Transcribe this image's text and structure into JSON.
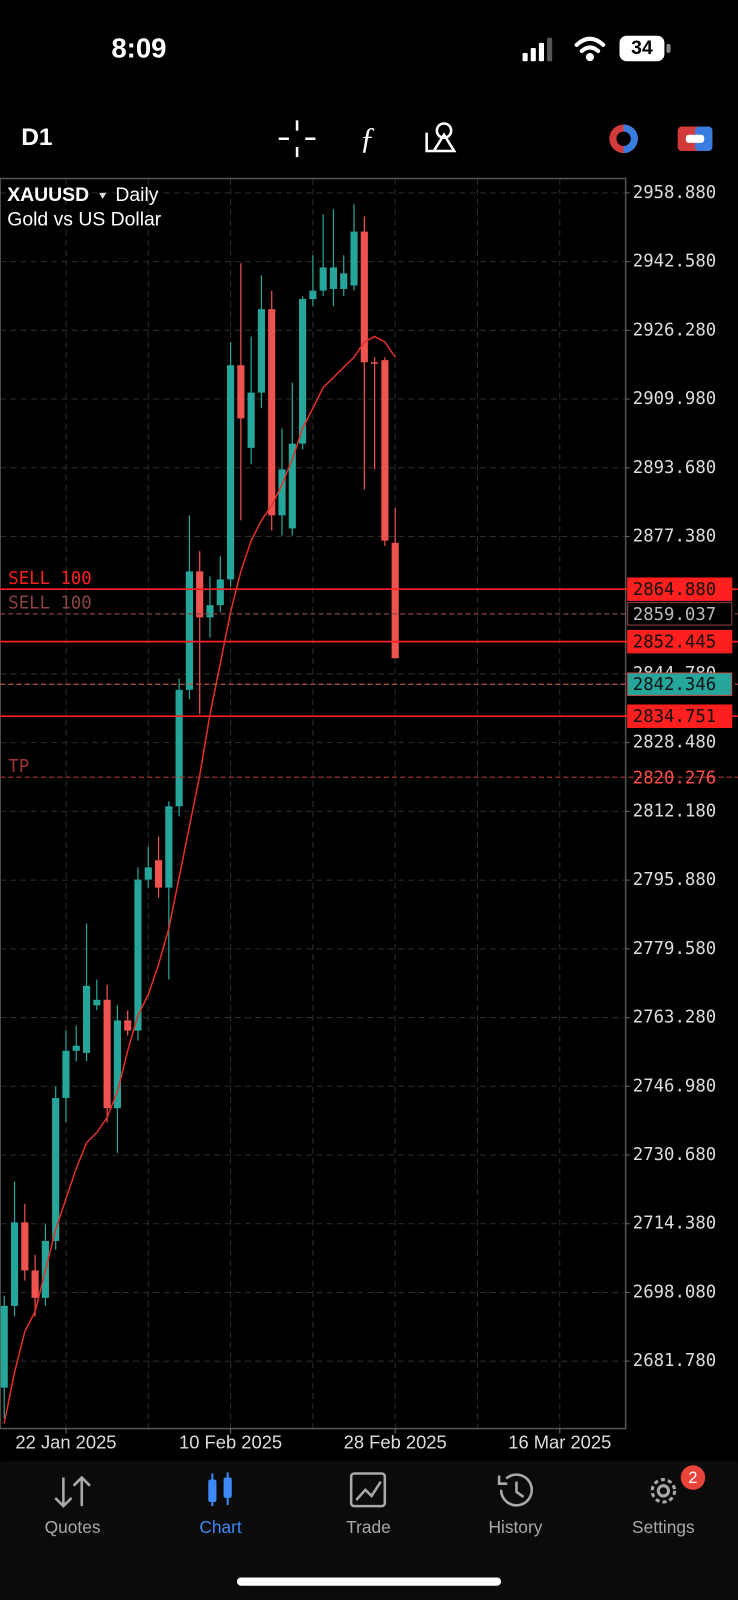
{
  "status_bar": {
    "time": "8:09",
    "battery": "34"
  },
  "toolbar": {
    "timeframe": "D1"
  },
  "chart_data": {
    "type": "candlestick",
    "symbol": "XAUUSD",
    "timeframe": "Daily",
    "description": "Gold vs US Dollar",
    "x": [
      0,
      1,
      2,
      3,
      4,
      5,
      6,
      7,
      8,
      9,
      10,
      11,
      12,
      13,
      14,
      15,
      16,
      17,
      18,
      19,
      20,
      21,
      22,
      23,
      24,
      25,
      26,
      27,
      28,
      29,
      30,
      31,
      32,
      33,
      34,
      35,
      36,
      37,
      38
    ],
    "open": [
      2675.5,
      2694.9,
      2714.7,
      2703.3,
      2696.8,
      2710.3,
      2744.2,
      2755.4,
      2754.9,
      2766.2,
      2767.5,
      2741.8,
      2762.6,
      2760.2,
      2796.0,
      2800.6,
      2794.1,
      2813.4,
      2841.0,
      2869.1,
      2858.2,
      2861.1,
      2867.2,
      2918.0,
      2898.4,
      2911.5,
      2931.3,
      2882.4,
      2879.3,
      2899.4,
      2933.7,
      2935.7,
      2936.1,
      2936.1,
      2936.9,
      2949.7,
      2918.7,
      2919.2,
      2875.9
    ],
    "high": [
      2697.3,
      2724.4,
      2719.1,
      2707.0,
      2714.2,
      2746.9,
      2760.2,
      2761.4,
      2785.6,
      2772.3,
      2771.1,
      2766.2,
      2765.0,
      2798.9,
      2803.8,
      2806.2,
      2814.6,
      2843.7,
      2882.4,
      2873.9,
      2867.9,
      2872.7,
      2923.5,
      2942.2,
      2924.8,
      2939.3,
      2935.7,
      2903.0,
      2913.9,
      2934.4,
      2944.1,
      2953.8,
      2955.0,
      2944.1,
      2956.2,
      2953.3,
      2919.9,
      2919.9,
      2884.1
    ],
    "low": [
      2668.2,
      2692.4,
      2700.9,
      2692.4,
      2694.9,
      2708.2,
      2738.4,
      2752.9,
      2752.9,
      2765.0,
      2738.4,
      2731.2,
      2759.0,
      2757.8,
      2794.1,
      2791.7,
      2772.3,
      2811.0,
      2838.8,
      2835.2,
      2853.4,
      2859.4,
      2865.5,
      2881.2,
      2894.5,
      2907.8,
      2878.8,
      2877.6,
      2877.6,
      2898.1,
      2932.0,
      2934.4,
      2932.0,
      2934.4,
      2935.7,
      2888.5,
      2893.3,
      2875.1,
      2848.5
    ],
    "close": [
      2694.9,
      2714.7,
      2703.3,
      2696.8,
      2710.3,
      2744.2,
      2755.4,
      2756.6,
      2770.8,
      2767.5,
      2741.8,
      2762.6,
      2760.2,
      2796.0,
      2798.9,
      2794.1,
      2813.4,
      2841.0,
      2869.1,
      2858.2,
      2861.1,
      2867.2,
      2918.0,
      2905.4,
      2911.5,
      2931.3,
      2882.4,
      2893.3,
      2899.4,
      2933.7,
      2935.7,
      2941.2,
      2941.2,
      2939.8,
      2949.7,
      2918.7,
      2918.5,
      2876.4,
      2848.5
    ],
    "up_color": "#26a69a",
    "down_color": "#ef5350",
    "overlay": {
      "color": "#e0302b",
      "values": [
        2667.0,
        2679.1,
        2688.8,
        2693.6,
        2703.3,
        2713.0,
        2720.3,
        2727.5,
        2733.6,
        2736.0,
        2739.6,
        2745.7,
        2755.4,
        2763.8,
        2768.7,
        2775.9,
        2784.4,
        2796.5,
        2808.6,
        2820.7,
        2835.2,
        2847.3,
        2859.4,
        2869.1,
        2876.4,
        2881.2,
        2884.8,
        2889.7,
        2895.7,
        2903.0,
        2907.8,
        2912.7,
        2915.1,
        2917.5,
        2919.9,
        2923.5,
        2924.8,
        2923.5,
        2919.9
      ]
    },
    "xlim": [
      -0.4,
      60.4
    ],
    "xticks": [
      {
        "value": 6,
        "label": "22 Jan 2025"
      },
      {
        "value": 22,
        "label": "10 Feb 2025"
      },
      {
        "value": 38,
        "label": "28 Feb 2025"
      },
      {
        "value": 54,
        "label": "16 Mar 2025"
      }
    ],
    "xgrid": [
      6,
      14,
      22,
      30,
      38,
      46,
      54
    ],
    "ylim": [
      2665.8,
      2962.27
    ],
    "yticks": [
      {
        "value": 2958.88,
        "label": "2958.880"
      },
      {
        "value": 2942.58,
        "label": "2942.580"
      },
      {
        "value": 2926.28,
        "label": "2926.280"
      },
      {
        "value": 2909.98,
        "label": "2909.980"
      },
      {
        "value": 2893.68,
        "label": "2893.680"
      },
      {
        "value": 2877.38,
        "label": "2877.380"
      },
      {
        "value": 2844.78,
        "label": "2844.780"
      },
      {
        "value": 2828.48,
        "label": "2828.480"
      },
      {
        "value": 2812.18,
        "label": "2812.180"
      },
      {
        "value": 2795.88,
        "label": "2795.880"
      },
      {
        "value": 2779.58,
        "label": "2779.580"
      },
      {
        "value": 2763.28,
        "label": "2763.280"
      },
      {
        "value": 2746.98,
        "label": "2746.980"
      },
      {
        "value": 2730.68,
        "label": "2730.680"
      },
      {
        "value": 2714.38,
        "label": "2714.380"
      },
      {
        "value": 2698.08,
        "label": "2698.080"
      },
      {
        "value": 2681.78,
        "label": "2681.780"
      }
    ],
    "grid": true,
    "levels": [
      {
        "value": 2864.88,
        "label": "2864.880",
        "color": "#ff1f1f",
        "dashed": false,
        "label_fill": "#ff1f1f",
        "label_color": "#111111",
        "note": "SELL 100"
      },
      {
        "value": 2859.037,
        "label": "2859.037",
        "color": "#8a4444",
        "dashed": true,
        "label_fill": "#000000",
        "label_color": "#bbbbbb",
        "note": "SELL 100"
      },
      {
        "value": 2852.445,
        "label": "2852.445",
        "color": "#ff1f1f",
        "dashed": false,
        "label_fill": "#ff1f1f",
        "label_color": "#111111"
      },
      {
        "value": 2842.346,
        "label": "2842.346",
        "color": "#c0504d",
        "dashed": true,
        "label_fill": "#26a69a",
        "label_color": "#111111"
      },
      {
        "value": 2834.751,
        "label": "2834.751",
        "color": "#ff1f1f",
        "dashed": false,
        "label_fill": "#ff1f1f",
        "label_color": "#111111"
      },
      {
        "value": 2820.276,
        "label": "2820.276",
        "color": "#a33333",
        "dashed": true,
        "label_color": "#ff4d4d",
        "note": "TP"
      }
    ]
  },
  "nav": {
    "items": [
      "Quotes",
      "Chart",
      "Trade",
      "History",
      "Settings"
    ],
    "badge": "2"
  }
}
